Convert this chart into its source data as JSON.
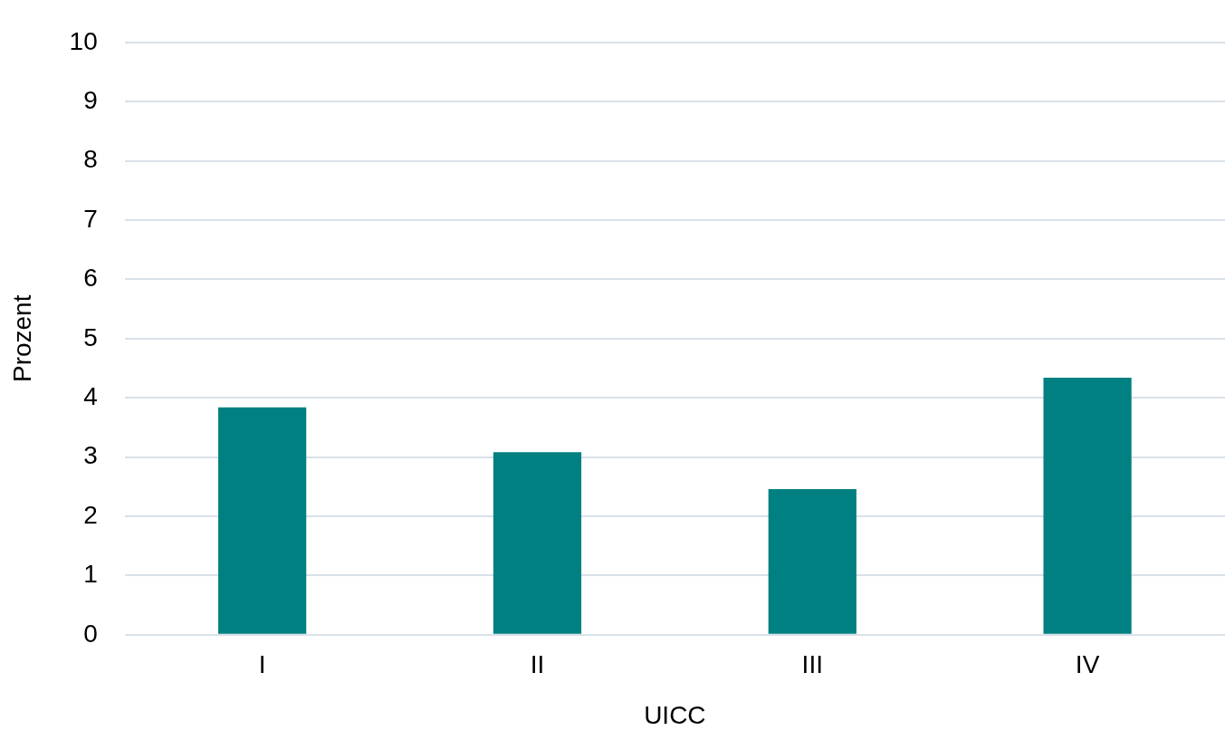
{
  "chart_data": {
    "type": "bar",
    "xlabel": "UICC",
    "ylabel": "Prozent",
    "categories": [
      "I",
      "II",
      "III",
      "IV"
    ],
    "values": [
      3.84,
      3.08,
      2.46,
      4.34
    ],
    "color": "#008080",
    "ylim": [
      0,
      10
    ],
    "yticks": [
      0,
      1,
      2,
      3,
      4,
      5,
      6,
      7,
      8,
      9,
      10
    ],
    "grid": "y",
    "legend": false
  }
}
